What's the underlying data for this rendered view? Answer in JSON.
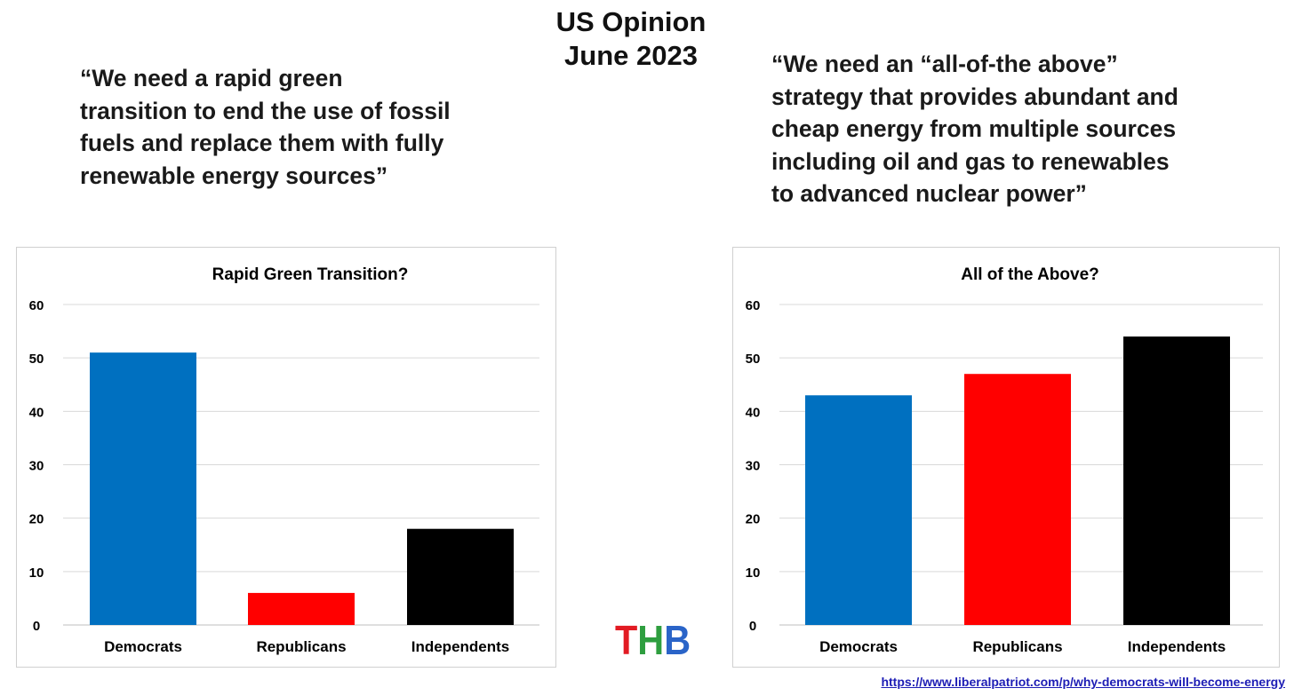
{
  "header": {
    "title_line1": "US Opinion",
    "title_line2": "June 2023"
  },
  "quotes": {
    "left": [
      "“We need a rapid green",
      "transition to end the use of fossil",
      "fuels and replace them with fully",
      "renewable energy sources”"
    ],
    "right": [
      "“We need an “all-of-the above”",
      "strategy that provides abundant and",
      "cheap energy from multiple sources",
      "including oil and gas to renewables",
      "to advanced nuclear power”"
    ]
  },
  "logo": {
    "t": "T",
    "h": "H",
    "b": "B"
  },
  "source": {
    "url": "https://www.liberalpatriot.com/p/why-democrats-will-become-energy"
  },
  "colors": {
    "democrats": "#0070c0",
    "republicans": "#ff0000",
    "independents": "#000000",
    "gridline": "#d9d9d9"
  },
  "chart_data": [
    {
      "type": "bar",
      "title": "Rapid Green Transition?",
      "categories": [
        "Democrats",
        "Republicans",
        "Independents"
      ],
      "values": [
        51,
        6,
        18
      ],
      "ylim": [
        0,
        60
      ],
      "yticks": [
        0,
        10,
        20,
        30,
        40,
        50,
        60
      ],
      "xlabel": "",
      "ylabel": "",
      "grid": true,
      "legend": "none"
    },
    {
      "type": "bar",
      "title": "All of the Above?",
      "categories": [
        "Democrats",
        "Republicans",
        "Independents"
      ],
      "values": [
        43,
        47,
        54
      ],
      "ylim": [
        0,
        60
      ],
      "yticks": [
        0,
        10,
        20,
        30,
        40,
        50,
        60
      ],
      "xlabel": "",
      "ylabel": "",
      "grid": true,
      "legend": "none"
    }
  ]
}
